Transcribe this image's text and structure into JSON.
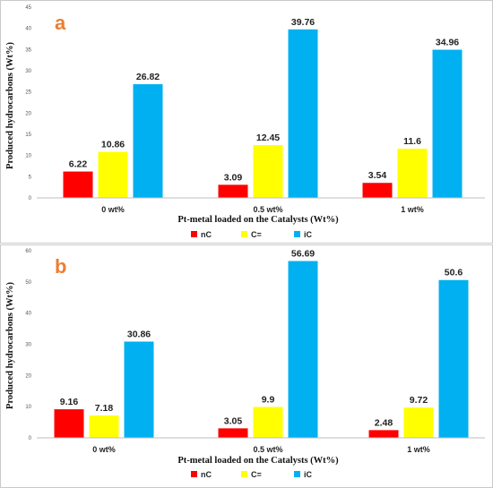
{
  "colors": {
    "nC": "#FF0000",
    "C=": "#FFFF00",
    "iC": "#00B0F0"
  },
  "chart_data": [
    {
      "type": "bar",
      "panel_label": "a",
      "categories": [
        "0 wt%",
        "0.5 wt%",
        "1 wt%"
      ],
      "series": [
        {
          "name": "nC",
          "values": [
            6.22,
            3.09,
            3.54
          ]
        },
        {
          "name": "C=",
          "values": [
            10.86,
            12.45,
            11.6
          ]
        },
        {
          "name": "iC",
          "values": [
            26.82,
            39.76,
            34.96
          ]
        }
      ],
      "data_labels": [
        [
          "6.22",
          "3.09",
          "3.54"
        ],
        [
          "10.86",
          "12.45",
          "11.6"
        ],
        [
          "26.82",
          "39.76",
          "34.96"
        ]
      ],
      "xlabel": "Pt-metal loaded on the Catalysts (Wt%)",
      "ylabel": "Produced hydrocarbons (Wt%)",
      "ylim": [
        0,
        45
      ],
      "yticks": [
        0,
        5,
        10,
        15,
        20,
        25,
        30,
        35,
        40,
        45
      ],
      "grid": false,
      "legend": "bottom"
    },
    {
      "type": "bar",
      "panel_label": "b",
      "categories": [
        "0 wt%",
        "0.5 wt%",
        "1 wt%"
      ],
      "series": [
        {
          "name": "nC",
          "values": [
            9.16,
            3.05,
            2.48
          ]
        },
        {
          "name": "C=",
          "values": [
            7.18,
            9.9,
            9.72
          ]
        },
        {
          "name": "iC",
          "values": [
            30.86,
            56.69,
            50.6
          ]
        }
      ],
      "data_labels": [
        [
          "9.16",
          "3.05",
          "2.48"
        ],
        [
          "7.18",
          "9.9",
          "9.72"
        ],
        [
          "30.86",
          "56.69",
          "50.6"
        ]
      ],
      "xlabel": "Pt-metal loaded on the Catalysts (Wt%)",
      "ylabel": "Produced hydrocarbons (Wt%)",
      "ylim": [
        0,
        60
      ],
      "yticks": [
        0,
        10,
        20,
        30,
        40,
        50,
        60
      ],
      "grid": false,
      "legend": "bottom"
    }
  ]
}
